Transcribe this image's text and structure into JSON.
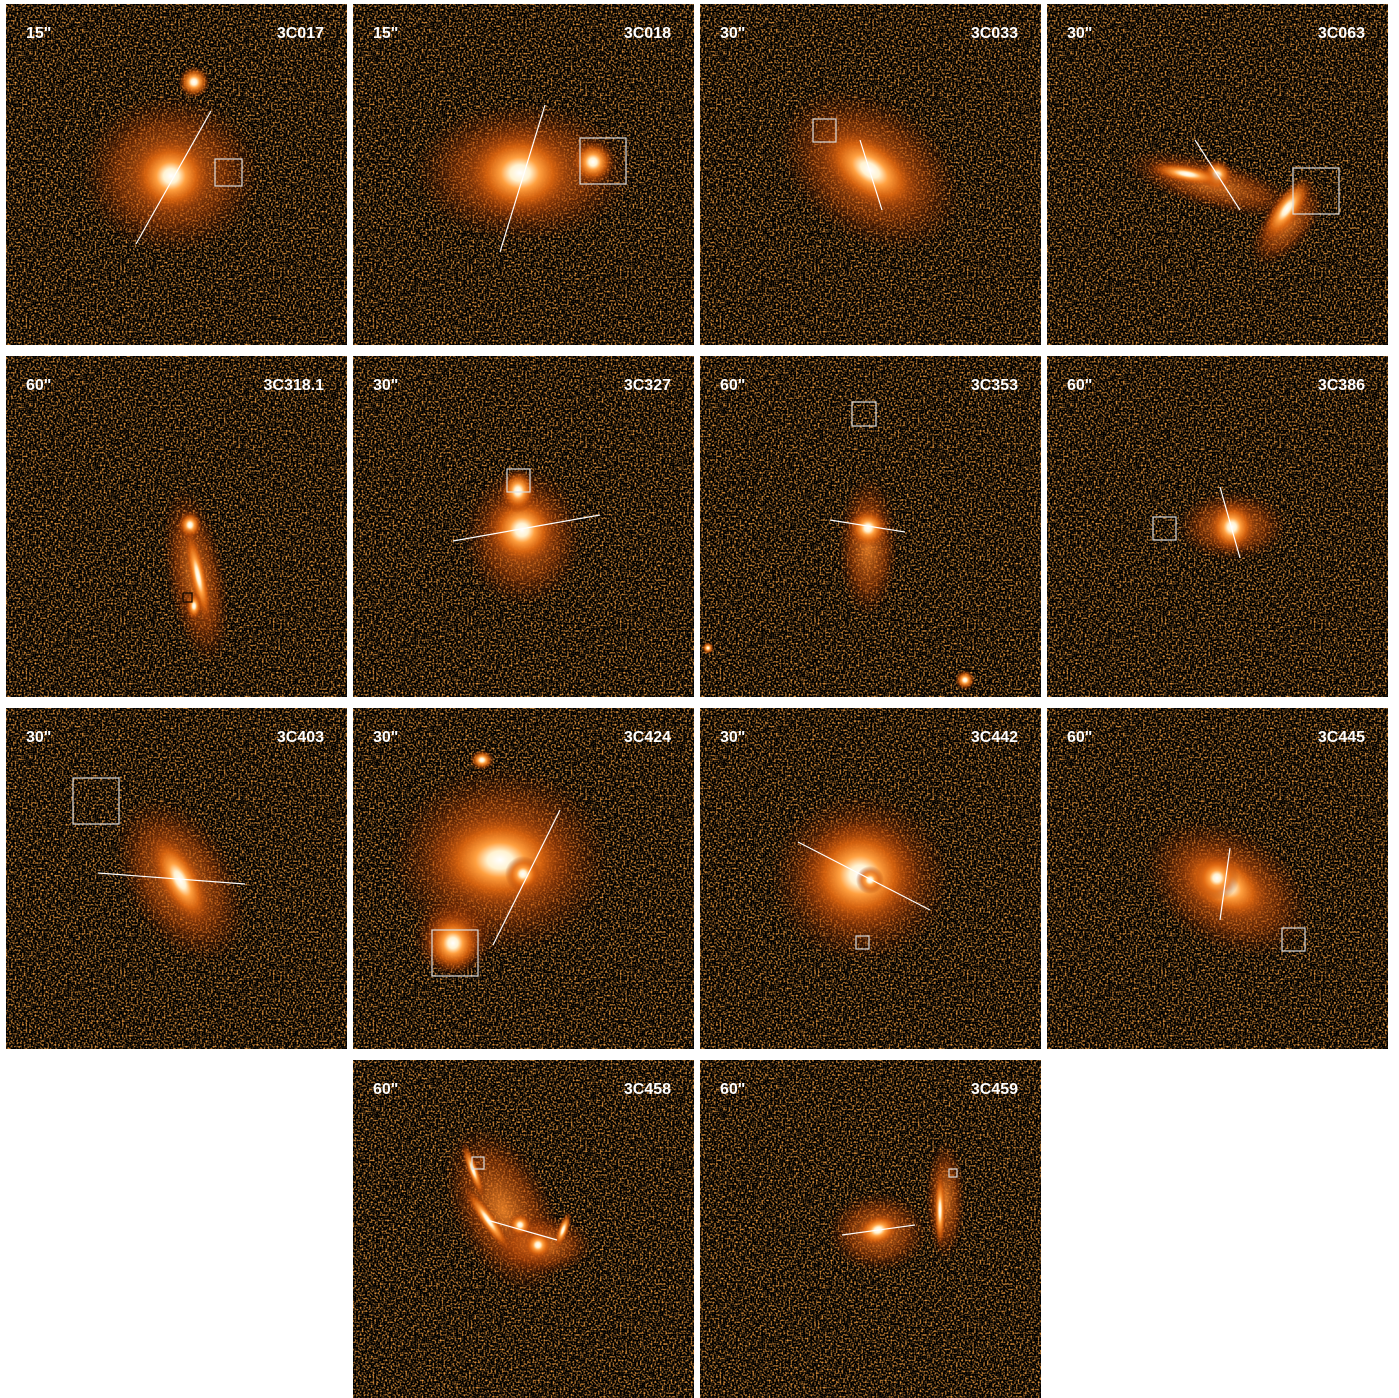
{
  "panels": [
    {
      "scale": "15\"",
      "name": "3C017"
    },
    {
      "scale": "15\"",
      "name": "3C018"
    },
    {
      "scale": "30\"",
      "name": "3C033"
    },
    {
      "scale": "30\"",
      "name": "3C063"
    },
    {
      "scale": "60\"",
      "name": "3C318.1"
    },
    {
      "scale": "30\"",
      "name": "3C327"
    },
    {
      "scale": "60\"",
      "name": "3C353"
    },
    {
      "scale": "60\"",
      "name": "3C386"
    },
    {
      "scale": "30\"",
      "name": "3C403"
    },
    {
      "scale": "30\"",
      "name": "3C424"
    },
    {
      "scale": "30\"",
      "name": "3C442"
    },
    {
      "scale": "60\"",
      "name": "3C445"
    },
    {
      "scale": "60\"",
      "name": "3C458"
    },
    {
      "scale": "60\"",
      "name": "3C459"
    }
  ]
}
